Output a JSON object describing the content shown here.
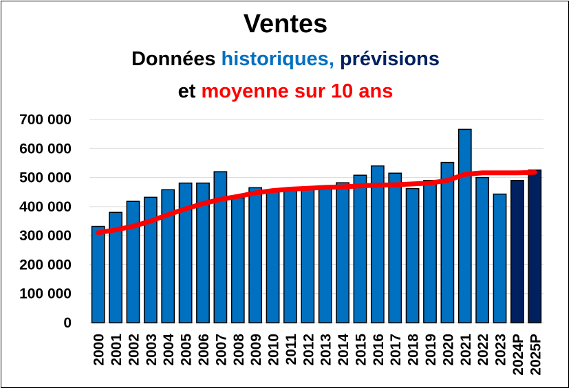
{
  "title": "Ventes",
  "subtitle_line1": {
    "part1": "Données ",
    "part2": "historiques,",
    "part3": " prévisions"
  },
  "subtitle_line2": {
    "part1": "et ",
    "part2": "moyenne sur 10 ans"
  },
  "colors": {
    "historical": "#0070C0",
    "forecast": "#002060",
    "average": "#FF0000",
    "title_text": "#000000"
  },
  "chart_data": {
    "type": "bar",
    "ylim": [
      0,
      700000
    ],
    "yticks": [
      "0",
      "100 000",
      "200 000",
      "300 000",
      "400 000",
      "500 000",
      "600 000",
      "700 000"
    ],
    "ytick_values": [
      0,
      100000,
      200000,
      300000,
      400000,
      500000,
      600000,
      700000
    ],
    "grid": true,
    "categories": [
      "2000",
      "2001",
      "2002",
      "2003",
      "2004",
      "2005",
      "2006",
      "2007",
      "2008",
      "2009",
      "2010",
      "2011",
      "2012",
      "2013",
      "2014",
      "2015",
      "2016",
      "2017",
      "2018",
      "2019",
      "2020",
      "2021",
      "2022",
      "2023",
      "2024P",
      "2025P"
    ],
    "series": [
      {
        "type": "bar",
        "values": [
          332000,
          380000,
          418000,
          432000,
          458000,
          481000,
          481000,
          520000,
          430000,
          465000,
          455000,
          460000,
          462000,
          468000,
          482000,
          508000,
          540000,
          515000,
          462000,
          490000,
          552000,
          666000,
          500000,
          443000,
          490000,
          526000
        ],
        "forecast_from_index": 24
      },
      {
        "type": "line",
        "values": [
          310000,
          320000,
          332000,
          350000,
          372000,
          392000,
          410000,
          425000,
          435000,
          447000,
          455000,
          460000,
          463000,
          466000,
          468000,
          471000,
          474000,
          475000,
          478000,
          481000,
          490000,
          511000,
          516000,
          516000,
          516000,
          518000
        ]
      }
    ]
  }
}
